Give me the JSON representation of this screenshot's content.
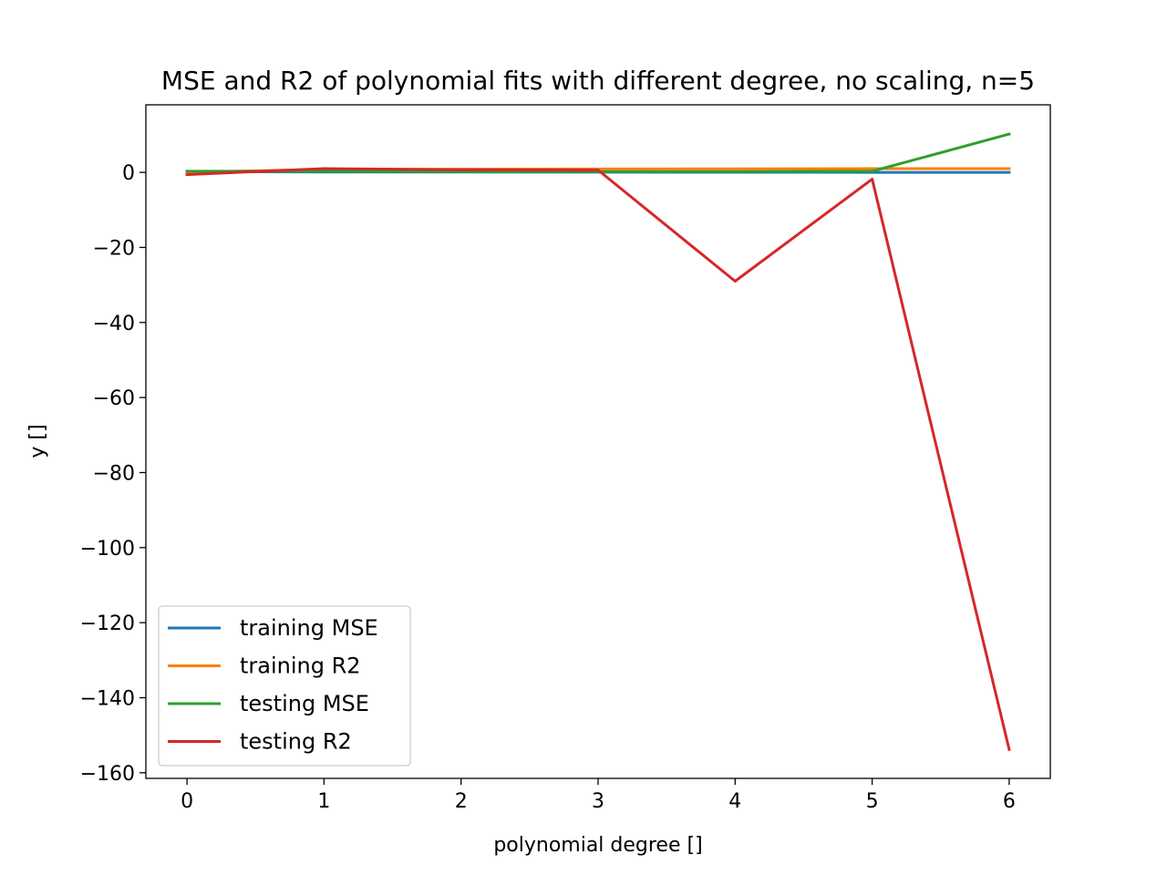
{
  "chart_data": {
    "type": "line",
    "title": "MSE and R2 of polynomial fits with different degree, no scaling, n=5",
    "xlabel": "polynomial degree []",
    "ylabel": "y []",
    "x": [
      0,
      1,
      2,
      3,
      4,
      5,
      6
    ],
    "xticks": [
      0,
      1,
      2,
      3,
      4,
      5,
      6
    ],
    "xtick_labels": [
      "0",
      "1",
      "2",
      "3",
      "4",
      "5",
      "6"
    ],
    "yticks": [
      0,
      -20,
      -40,
      -60,
      -80,
      -100,
      -120,
      -140,
      -160
    ],
    "ytick_labels": [
      "0",
      "−20",
      "−40",
      "−60",
      "−80",
      "−100",
      "−120",
      "−140",
      "−160"
    ],
    "xlim": [
      -0.3,
      6.3
    ],
    "ylim": [
      -161.5,
      18
    ],
    "grid": false,
    "legend_position": "lower-left",
    "series": [
      {
        "name": "training MSE",
        "color": "#1f77b4",
        "values": [
          0.2,
          0.1,
          0.08,
          0.05,
          0.03,
          0.0,
          0.0
        ]
      },
      {
        "name": "training R2",
        "color": "#ff7f0e",
        "values": [
          0.0,
          0.8,
          0.85,
          0.9,
          0.95,
          1.0,
          1.0
        ]
      },
      {
        "name": "testing MSE",
        "color": "#2ca02c",
        "values": [
          0.3,
          0.3,
          0.2,
          0.2,
          0.2,
          0.3,
          10.2
        ]
      },
      {
        "name": "testing R2",
        "color": "#d62728",
        "values": [
          -0.6,
          1.0,
          0.7,
          0.6,
          -29.0,
          -1.8,
          -153.8
        ]
      }
    ]
  }
}
